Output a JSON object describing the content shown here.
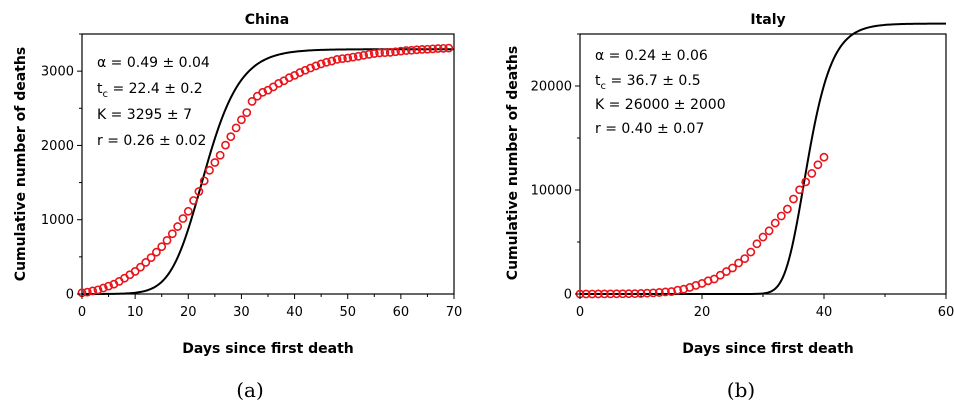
{
  "chart_data": [
    {
      "type": "scatter",
      "title": "China",
      "xlabel": "Days since first death",
      "ylabel": "Cumulative number of deaths",
      "xlim": [
        0,
        70
      ],
      "ylim": [
        0,
        3500
      ],
      "xticks": [
        0,
        10,
        20,
        30,
        40,
        50,
        60,
        70
      ],
      "yticks": [
        0,
        1000,
        2000,
        3000
      ],
      "grid": false,
      "params": [
        "α = 0.49 ± 0.04",
        "t",
        "c",
        " = 22.4 ± 0.2",
        "K = 3295 ± 7",
        "r = 0.26 ± 0.02"
      ],
      "fit": {
        "alpha": 0.49,
        "tc": 22.4,
        "K": 3295,
        "r": 0.26,
        "x_range": [
          0,
          70
        ],
        "color": "#000000"
      },
      "series": [
        {
          "marker": "open-circle",
          "color": "#e8141a",
          "x": [
            0,
            1,
            2,
            3,
            4,
            5,
            6,
            7,
            8,
            9,
            10,
            11,
            12,
            13,
            14,
            15,
            16,
            17,
            18,
            19,
            20,
            21,
            22,
            23,
            24,
            25,
            26,
            27,
            28,
            29,
            30,
            31,
            32,
            33,
            34,
            35,
            36,
            37,
            38,
            39,
            40,
            41,
            42,
            43,
            44,
            45,
            46,
            47,
            48,
            49,
            50,
            51,
            52,
            53,
            54,
            55,
            56,
            57,
            58,
            59,
            60,
            61,
            62,
            63,
            64,
            65,
            66,
            67,
            68,
            69
          ],
          "y": [
            17,
            25,
            41,
            56,
            80,
            106,
            132,
            170,
            213,
            259,
            304,
            361,
            425,
            490,
            563,
            637,
            722,
            811,
            908,
            1016,
            1113,
            1259,
            1380,
            1523,
            1665,
            1770,
            1868,
            2004,
            2118,
            2236,
            2345,
            2442,
            2592,
            2663,
            2715,
            2744,
            2788,
            2835,
            2870,
            2912,
            2943,
            2981,
            3012,
            3042,
            3070,
            3097,
            3119,
            3136,
            3158,
            3169,
            3176,
            3189,
            3200,
            3213,
            3226,
            3237,
            3245,
            3249,
            3253,
            3261,
            3270,
            3277,
            3281,
            3287,
            3292,
            3295,
            3300,
            3305,
            3307,
            3310
          ]
        }
      ],
      "subcaption": "(a)"
    },
    {
      "type": "scatter",
      "title": "Italy",
      "xlabel": "Days since first death",
      "ylabel": "Cumulative number of deaths",
      "xlim": [
        0,
        60
      ],
      "ylim": [
        0,
        25000
      ],
      "xticks": [
        0,
        20,
        40,
        60
      ],
      "yticks": [
        0,
        10000,
        20000
      ],
      "grid": false,
      "params": [
        "α = 0.24 ± 0.06",
        "t",
        "c",
        " = 36.7 ± 0.5",
        "K = 26000 ± 2000",
        "r = 0.40 ± 0.07"
      ],
      "fit": {
        "alpha": 0.24,
        "tc": 36.7,
        "K": 26000,
        "r": 0.4,
        "x_range": [
          0,
          60
        ],
        "color": "#000000"
      },
      "series": [
        {
          "marker": "open-circle",
          "color": "#e8141a",
          "x": [
            0,
            1,
            2,
            3,
            4,
            5,
            6,
            7,
            8,
            9,
            10,
            11,
            12,
            13,
            14,
            15,
            16,
            17,
            18,
            19,
            20,
            21,
            22,
            23,
            24,
            25,
            26,
            27,
            28,
            29,
            30,
            31,
            32,
            33,
            34,
            35,
            36,
            37,
            38,
            39,
            40
          ],
          "y": [
            1,
            2,
            3,
            7,
            10,
            12,
            17,
            21,
            29,
            34,
            52,
            79,
            107,
            148,
            197,
            233,
            366,
            463,
            631,
            827,
            1016,
            1266,
            1441,
            1809,
            2158,
            2503,
            2978,
            3405,
            4032,
            4825,
            5476,
            6077,
            6820,
            7503,
            8165,
            9134,
            10023,
            10779,
            11591,
            12428,
            13155
          ],
          "ignore": true
        }
      ],
      "subcaption": "(b)"
    }
  ]
}
